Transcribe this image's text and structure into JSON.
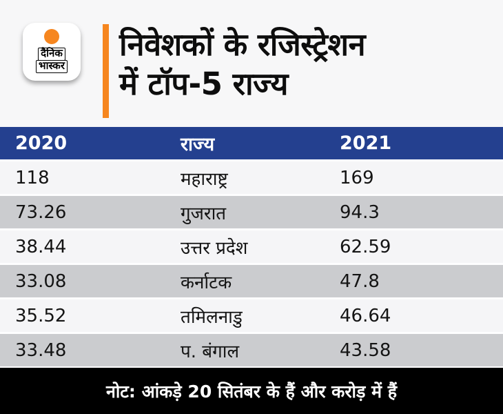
{
  "brand": {
    "logo_line1": "दैनिक",
    "logo_line2": "भास्कर",
    "logo_dot_color": "#f6861f"
  },
  "header": {
    "title_line1": "निवेशकों के रजिस्ट्रेशन",
    "title_line2": "में टॉप-5 राज्य",
    "accent_color": "#f6861f"
  },
  "chart_data": {
    "type": "table",
    "title": "निवेशकों के रजिस्ट्रेशन में टॉप-5 राज्य",
    "columns": [
      "2020",
      "राज्य",
      "2021"
    ],
    "rows": [
      [
        "118",
        "महाराष्ट्र",
        "169"
      ],
      [
        "73.26",
        "गुजरात",
        "94.3"
      ],
      [
        "38.44",
        "उत्तर प्रदेश",
        "62.59"
      ],
      [
        "33.08",
        "कर्नाटक",
        "47.8"
      ],
      [
        "35.52",
        "तमिलनाडु",
        "46.64"
      ],
      [
        "33.48",
        "प. बंगाल",
        "43.58"
      ]
    ],
    "note": "नोट: आंकड़े 20 सितंबर के हैं और करोड़ में हैं",
    "unit_hint": "करोड़",
    "layout": {
      "header_bg": "#24408f",
      "row_bg": "#f5f5f7",
      "row_alt_bg": "#cbcccf",
      "note_bg": "#000000",
      "header_text_color": "#ffffff",
      "row_text_color": "#141414"
    }
  },
  "footer": {
    "note": "नोट: आंकड़े 20 सितंबर के हैं और करोड़ में हैं"
  }
}
